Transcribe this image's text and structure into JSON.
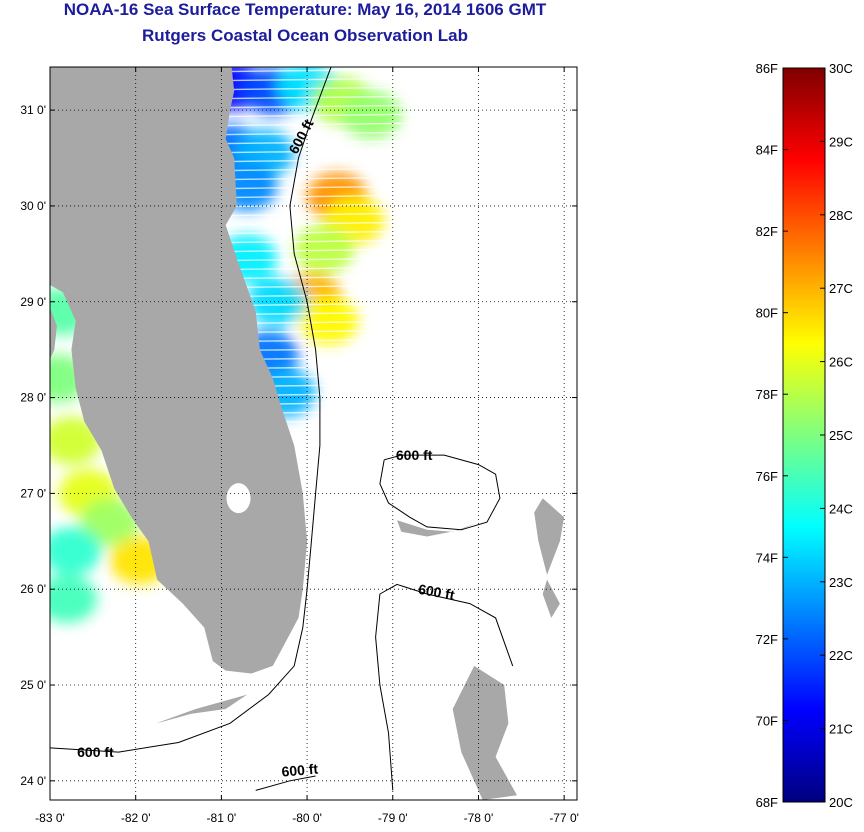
{
  "title": "NOAA-16 Sea Surface Temperature:  May 16, 2014 1606 GMT",
  "subtitle": "Rutgers Coastal Ocean Observation Lab",
  "map": {
    "lon_range": [
      -83.0,
      -76.85
    ],
    "lat_range": [
      23.8,
      31.45
    ],
    "lon_ticks": [
      {
        "value": -83,
        "label": "-83 0'"
      },
      {
        "value": -82,
        "label": "-82 0'"
      },
      {
        "value": -81,
        "label": "-81 0'"
      },
      {
        "value": -80,
        "label": "-80 0'"
      },
      {
        "value": -79,
        "label": "-79 0'"
      },
      {
        "value": -78,
        "label": "-78 0'"
      },
      {
        "value": -77,
        "label": "-77 0'"
      }
    ],
    "lat_ticks": [
      {
        "value": 24,
        "label": "24 0'"
      },
      {
        "value": 25,
        "label": "25 0'"
      },
      {
        "value": 26,
        "label": "26 0'"
      },
      {
        "value": 27,
        "label": "27 0'"
      },
      {
        "value": 28,
        "label": "28 0'"
      },
      {
        "value": 29,
        "label": "29 0'"
      },
      {
        "value": 30,
        "label": "30 0'"
      },
      {
        "value": 31,
        "label": "31 0'"
      }
    ],
    "grid": "dotted",
    "land_color": "#a8a8a8",
    "contour_labels": [
      {
        "text": "600 ft",
        "lon": -80.02,
        "lat": 30.7,
        "angle": -62
      },
      {
        "text": "600 ft",
        "lon": -78.75,
        "lat": 27.35,
        "angle": 0
      },
      {
        "text": "600 ft",
        "lon": -78.5,
        "lat": 25.92,
        "angle": 10
      },
      {
        "text": "600 ft",
        "lon": -82.47,
        "lat": 24.25,
        "angle": 0
      },
      {
        "text": "600 ft",
        "lon": -80.08,
        "lat": 24.06,
        "angle": -5
      }
    ]
  },
  "colorbar": {
    "f_labels": [
      "86F",
      "84F",
      "82F",
      "80F",
      "78F",
      "76F",
      "74F",
      "72F",
      "70F",
      "68F"
    ],
    "c_labels": [
      "30C",
      "29C",
      "28C",
      "27C",
      "26C",
      "25C",
      "24C",
      "23C",
      "22C",
      "21C",
      "20C"
    ],
    "range_c": [
      20,
      30
    ],
    "colors": [
      "#00007f",
      "#0000ff",
      "#007fff",
      "#00ffff",
      "#7fff7f",
      "#ffff00",
      "#ff7f00",
      "#ff0000",
      "#7f0000"
    ]
  },
  "sst_patches": [
    {
      "lon": -80.85,
      "lat": 31.25,
      "c": 21.3
    },
    {
      "lon": -80.4,
      "lat": 31.2,
      "c": 22.0
    },
    {
      "lon": -80.0,
      "lat": 31.25,
      "c": 23.5
    },
    {
      "lon": -79.6,
      "lat": 31.1,
      "c": 25.5
    },
    {
      "lon": -79.25,
      "lat": 30.95,
      "c": 25.2
    },
    {
      "lon": -80.9,
      "lat": 30.6,
      "c": 22.3
    },
    {
      "lon": -80.5,
      "lat": 30.55,
      "c": 23.0
    },
    {
      "lon": -80.7,
      "lat": 30.2,
      "c": 22.6
    },
    {
      "lon": -79.65,
      "lat": 30.1,
      "c": 27.3
    },
    {
      "lon": -79.45,
      "lat": 29.85,
      "c": 26.4
    },
    {
      "lon": -79.8,
      "lat": 29.55,
      "c": 25.6
    },
    {
      "lon": -79.95,
      "lat": 29.05,
      "c": 27.0
    },
    {
      "lon": -79.75,
      "lat": 28.8,
      "c": 26.3
    },
    {
      "lon": -80.35,
      "lat": 29.0,
      "c": 23.4
    },
    {
      "lon": -80.45,
      "lat": 28.45,
      "c": 22.4
    },
    {
      "lon": -80.25,
      "lat": 28.05,
      "c": 23.0
    },
    {
      "lon": -80.7,
      "lat": 29.45,
      "c": 23.6
    },
    {
      "lon": -82.85,
      "lat": 28.9,
      "c": 24.6
    },
    {
      "lon": -82.9,
      "lat": 28.2,
      "c": 25.0
    },
    {
      "lon": -82.75,
      "lat": 27.55,
      "c": 25.8
    },
    {
      "lon": -82.55,
      "lat": 27.0,
      "c": 26.0
    },
    {
      "lon": -82.3,
      "lat": 26.7,
      "c": 25.3
    },
    {
      "lon": -81.95,
      "lat": 26.3,
      "c": 26.5
    },
    {
      "lon": -82.75,
      "lat": 26.4,
      "c": 24.2
    },
    {
      "lon": -82.8,
      "lat": 25.9,
      "c": 24.4
    }
  ]
}
